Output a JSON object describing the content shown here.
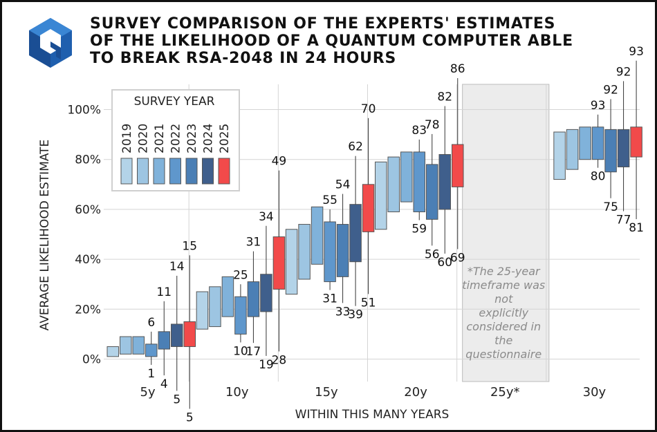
{
  "title_lines": [
    "SURVEY COMPARISON OF THE EXPERTS' ESTIMATES",
    "OF THE LIKELIHOOD OF A QUANTUM COMPUTER ABLE",
    "TO BREAK RSA-2048 IN 24 HOURS"
  ],
  "logo_icon": "quantum-cube-logo",
  "chart_data": {
    "type": "floating-bar",
    "xlabel": "WITHIN THIS MANY YEARS",
    "ylabel": "AVERAGE LIKELIHOOD ESTIMATE",
    "ylim": [
      0,
      100
    ],
    "yticks": [
      "0%",
      "20%",
      "40%",
      "60%",
      "80%",
      "100%"
    ],
    "categories": [
      "5y",
      "10y",
      "15y",
      "20y",
      "25y*",
      "30y"
    ],
    "grid": true,
    "legend_title": "SURVEY YEAR",
    "legend_position": "top-left",
    "series": [
      {
        "name": "2019",
        "color": "#b3d3e8",
        "values": [
          [
            1,
            5
          ],
          [
            12,
            27
          ],
          [
            26,
            52
          ],
          [
            52,
            79
          ],
          null,
          [
            72,
            91
          ]
        ]
      },
      {
        "name": "2020",
        "color": "#9dc5e2",
        "values": [
          [
            2,
            9
          ],
          [
            13,
            29
          ],
          [
            32,
            54
          ],
          [
            59,
            81
          ],
          null,
          [
            76,
            92
          ]
        ]
      },
      {
        "name": "2021",
        "color": "#80b2da",
        "values": [
          [
            2,
            9
          ],
          [
            17,
            33
          ],
          [
            38,
            61
          ],
          [
            63,
            83
          ],
          null,
          [
            80,
            93
          ]
        ]
      },
      {
        "name": "2022",
        "color": "#5f97cc",
        "values": [
          [
            1,
            6
          ],
          [
            10,
            25
          ],
          [
            31,
            55
          ],
          [
            59,
            83
          ],
          null,
          [
            80,
            93
          ]
        ]
      },
      {
        "name": "2023",
        "color": "#4b7fb5",
        "values": [
          [
            4,
            11
          ],
          [
            17,
            31
          ],
          [
            33,
            54
          ],
          [
            56,
            78
          ],
          null,
          [
            75,
            92
          ]
        ]
      },
      {
        "name": "2024",
        "color": "#3f5f8c",
        "values": [
          [
            5,
            14
          ],
          [
            19,
            34
          ],
          [
            39,
            62
          ],
          [
            60,
            82
          ],
          null,
          [
            77,
            92
          ]
        ]
      },
      {
        "name": "2025",
        "color": "#f24a4a",
        "values": [
          [
            5,
            15
          ],
          [
            28,
            49
          ],
          [
            51,
            70
          ],
          [
            69,
            86
          ],
          null,
          [
            81,
            93
          ]
        ]
      }
    ],
    "labeled_series": [
      "2022",
      "2023",
      "2024",
      "2025"
    ],
    "annotation": "*The 25-year timeframe was not explicitly considered in the questionnaire"
  }
}
